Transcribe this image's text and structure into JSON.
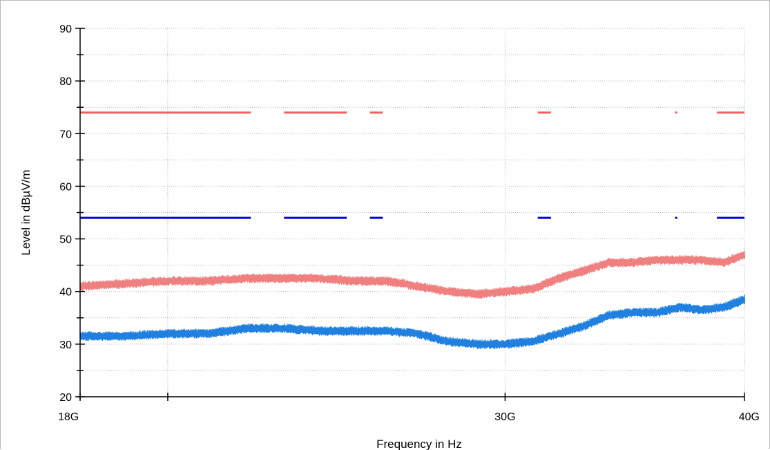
{
  "chart_data": {
    "type": "line",
    "xlabel": "Frequency in Hz",
    "ylabel": "Level in dBµV/m",
    "x_scale": "log",
    "xlim": [
      "18G",
      "40G"
    ],
    "x_tick_labels": [
      "18G",
      "30G",
      "40G"
    ],
    "ylim": [
      20,
      90
    ],
    "y_ticks": [
      20,
      30,
      40,
      50,
      60,
      70,
      80,
      90
    ],
    "grid": true,
    "series": [
      {
        "color": "#f06060",
        "style": "limit",
        "level": 74,
        "segments": [
          [
            "18G",
            "22.1G"
          ],
          [
            "23G",
            "24.8G"
          ],
          [
            "25.5G",
            "25.9G"
          ],
          [
            "31.2G",
            "31.7G"
          ],
          [
            "36.8G",
            "36.9G"
          ],
          [
            "38.7G",
            "40G"
          ]
        ]
      },
      {
        "color": "#0000e0",
        "style": "limit",
        "level": 54,
        "segments": [
          [
            "18G",
            "22.1G"
          ],
          [
            "23G",
            "24.8G"
          ],
          [
            "25.5G",
            "25.9G"
          ],
          [
            "31.2G",
            "31.7G"
          ],
          [
            "36.8G",
            "36.9G"
          ],
          [
            "38.7G",
            "40G"
          ]
        ]
      },
      {
        "color": "#f08080",
        "style": "trace",
        "x": [
          "18G",
          "19G",
          "20G",
          "21G",
          "22G",
          "23G",
          "24G",
          "25G",
          "26G",
          "27G",
          "28G",
          "29G",
          "30G",
          "31G",
          "32G",
          "33G",
          "34G",
          "35G",
          "36G",
          "37G",
          "38G",
          "39G",
          "40G"
        ],
        "y": [
          41,
          41.5,
          42,
          42,
          42.5,
          42.5,
          42.5,
          42,
          42,
          41,
          40,
          39.5,
          40,
          40.5,
          42.5,
          44,
          45.5,
          45.5,
          46,
          46,
          46,
          45.5,
          47
        ]
      },
      {
        "color": "#2080e0",
        "style": "trace",
        "x": [
          "18G",
          "19G",
          "20G",
          "21G",
          "22G",
          "23G",
          "24G",
          "25G",
          "26G",
          "27G",
          "28G",
          "29G",
          "30G",
          "31G",
          "32G",
          "33G",
          "34G",
          "35G",
          "36G",
          "37G",
          "38G",
          "39G",
          "40G"
        ],
        "y": [
          31.5,
          31.5,
          32,
          32,
          33,
          33,
          32.5,
          32.5,
          32.5,
          32,
          30.5,
          30,
          30,
          30.5,
          32,
          33.5,
          35.5,
          36,
          36,
          37,
          36.5,
          37,
          38.5
        ]
      }
    ]
  }
}
